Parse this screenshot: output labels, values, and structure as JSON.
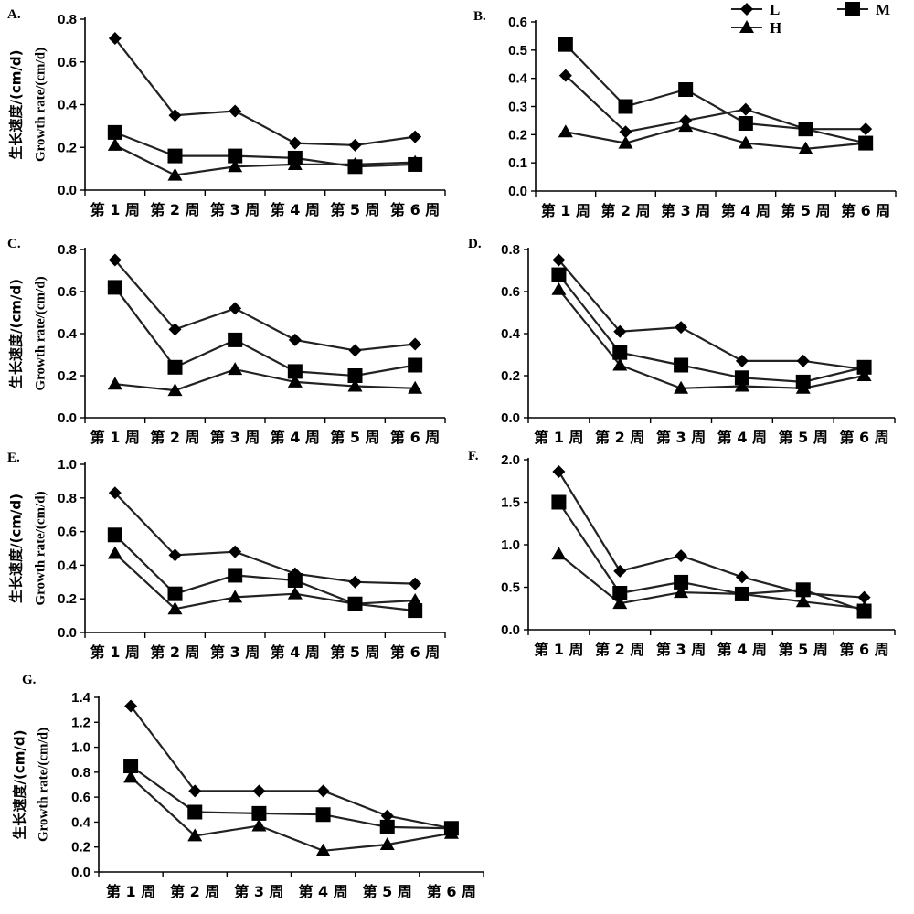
{
  "legend": [
    {
      "name": "L",
      "marker": "diamond"
    },
    {
      "name": "M",
      "marker": "square"
    },
    {
      "name": "H",
      "marker": "triangle"
    }
  ],
  "colors": {
    "line": "#222222",
    "marker": "#000000",
    "axis": "#000000"
  },
  "chart_data": [
    {
      "type": "line",
      "panel": "A.",
      "categories": [
        "第 1 周",
        "第 2 周",
        "第 3 周",
        "第 4 周",
        "第 5 周",
        "第 6 周"
      ],
      "ylabel_zh": "生长速度/(cm/d)",
      "ylabel_en": "Growth rate/(cm/d)",
      "ylim": [
        0,
        0.8
      ],
      "yticks": [
        0.0,
        0.2,
        0.4,
        0.6,
        0.8
      ],
      "ytick_labels": [
        "0.0",
        "0.2",
        "0.4",
        "0.6",
        "0.8"
      ],
      "grid": false,
      "legend": false,
      "series": [
        {
          "name": "L",
          "marker": "diamond",
          "values": [
            0.71,
            0.35,
            0.37,
            0.22,
            0.21,
            0.25
          ]
        },
        {
          "name": "M",
          "marker": "square",
          "values": [
            0.27,
            0.16,
            0.16,
            0.15,
            0.11,
            0.12
          ]
        },
        {
          "name": "H",
          "marker": "triangle",
          "values": [
            0.21,
            0.07,
            0.11,
            0.12,
            0.12,
            0.13
          ]
        }
      ]
    },
    {
      "type": "line",
      "panel": "B.",
      "categories": [
        "第 1 周",
        "第 2 周",
        "第 3 周",
        "第 4 周",
        "第 5 周",
        "第 6 周"
      ],
      "ylabel_zh": "",
      "ylabel_en": "",
      "ylim": [
        0,
        0.6
      ],
      "yticks": [
        0.0,
        0.1,
        0.2,
        0.3,
        0.4,
        0.5,
        0.6
      ],
      "ytick_labels": [
        "0.0",
        "0.1",
        "0.2",
        "0.3",
        "0.4",
        "0.5",
        "0.6"
      ],
      "grid": false,
      "legend": true,
      "legend_position": "top-right",
      "series": [
        {
          "name": "L",
          "marker": "diamond",
          "values": [
            0.41,
            0.21,
            0.25,
            0.29,
            0.22,
            0.22
          ]
        },
        {
          "name": "M",
          "marker": "square",
          "values": [
            0.52,
            0.3,
            0.36,
            0.24,
            0.22,
            0.17
          ]
        },
        {
          "name": "H",
          "marker": "triangle",
          "values": [
            0.21,
            0.17,
            0.23,
            0.17,
            0.15,
            0.17
          ]
        }
      ]
    },
    {
      "type": "line",
      "panel": "C.",
      "categories": [
        "第 1 周",
        "第 2 周",
        "第 3 周",
        "第 4 周",
        "第 5 周",
        "第 6 周"
      ],
      "ylabel_zh": "生长速度/(cm/d)",
      "ylabel_en": "Growth rate/(cm/d)",
      "ylim": [
        0,
        0.8
      ],
      "yticks": [
        0.0,
        0.2,
        0.4,
        0.6,
        0.8
      ],
      "ytick_labels": [
        "0.0",
        "0.2",
        "0.4",
        "0.6",
        "0.8"
      ],
      "grid": false,
      "legend": false,
      "series": [
        {
          "name": "L",
          "marker": "diamond",
          "values": [
            0.75,
            0.42,
            0.52,
            0.37,
            0.32,
            0.35
          ]
        },
        {
          "name": "M",
          "marker": "square",
          "values": [
            0.62,
            0.24,
            0.37,
            0.22,
            0.2,
            0.25
          ]
        },
        {
          "name": "H",
          "marker": "triangle",
          "values": [
            0.16,
            0.13,
            0.23,
            0.17,
            0.15,
            0.14
          ]
        }
      ]
    },
    {
      "type": "line",
      "panel": "D.",
      "categories": [
        "第 1 周",
        "第 2 周",
        "第 3 周",
        "第 4 周",
        "第 5 周",
        "第 6 周"
      ],
      "ylabel_zh": "",
      "ylabel_en": "",
      "ylim": [
        0,
        0.8
      ],
      "yticks": [
        0.0,
        0.2,
        0.4,
        0.6,
        0.8
      ],
      "ytick_labels": [
        "0.0",
        "0.2",
        "0.4",
        "0.6",
        "0.8"
      ],
      "grid": false,
      "legend": false,
      "series": [
        {
          "name": "L",
          "marker": "diamond",
          "values": [
            0.75,
            0.41,
            0.43,
            0.27,
            0.27,
            0.23
          ]
        },
        {
          "name": "M",
          "marker": "square",
          "values": [
            0.68,
            0.31,
            0.25,
            0.19,
            0.17,
            0.24
          ]
        },
        {
          "name": "H",
          "marker": "triangle",
          "values": [
            0.61,
            0.25,
            0.14,
            0.15,
            0.14,
            0.2
          ]
        }
      ]
    },
    {
      "type": "line",
      "panel": "E.",
      "categories": [
        "第 1 周",
        "第 2 周",
        "第 3 周",
        "第 4 周",
        "第 5 周",
        "第 6 周"
      ],
      "ylabel_zh": "生长速度/(cm/d)",
      "ylabel_en": "Growth rate/(cm/d)",
      "ylim": [
        0,
        1.0
      ],
      "yticks": [
        0.0,
        0.2,
        0.4,
        0.6,
        0.8,
        1.0
      ],
      "ytick_labels": [
        "0.0",
        "0.2",
        "0.4",
        "0.6",
        "0.8",
        "1.0"
      ],
      "grid": false,
      "legend": false,
      "series": [
        {
          "name": "L",
          "marker": "diamond",
          "values": [
            0.83,
            0.46,
            0.48,
            0.35,
            0.3,
            0.29
          ]
        },
        {
          "name": "M",
          "marker": "square",
          "values": [
            0.58,
            0.23,
            0.34,
            0.31,
            0.17,
            0.13
          ]
        },
        {
          "name": "H",
          "marker": "triangle",
          "values": [
            0.47,
            0.14,
            0.21,
            0.23,
            0.17,
            0.19
          ]
        }
      ]
    },
    {
      "type": "line",
      "panel": "F.",
      "categories": [
        "第 1 周",
        "第 2 周",
        "第 3 周",
        "第 4 周",
        "第 5 周",
        "第 6 周"
      ],
      "ylabel_zh": "",
      "ylabel_en": "",
      "ylim": [
        0,
        2.0
      ],
      "yticks": [
        0.0,
        0.5,
        1.0,
        1.5,
        2.0
      ],
      "ytick_labels": [
        "0.0",
        "0.5",
        "1.0",
        "1.5",
        "2.0"
      ],
      "grid": false,
      "legend": false,
      "series": [
        {
          "name": "L",
          "marker": "diamond",
          "values": [
            1.86,
            0.69,
            0.87,
            0.62,
            0.43,
            0.38
          ]
        },
        {
          "name": "M",
          "marker": "square",
          "values": [
            1.5,
            0.43,
            0.56,
            0.42,
            0.47,
            0.22
          ]
        },
        {
          "name": "H",
          "marker": "triangle",
          "values": [
            0.89,
            0.31,
            0.44,
            0.42,
            0.33,
            0.25
          ]
        }
      ]
    },
    {
      "type": "line",
      "panel": "G.",
      "categories": [
        "第 1 周",
        "第 2 周",
        "第 3 周",
        "第 4 周",
        "第 5 周",
        "第 6 周"
      ],
      "ylabel_zh": "生长速度/(cm/d)",
      "ylabel_en": "Growth rate/(cm/d)",
      "ylim": [
        0,
        1.4
      ],
      "yticks": [
        0.0,
        0.2,
        0.4,
        0.6,
        0.8,
        1.0,
        1.2,
        1.4
      ],
      "ytick_labels": [
        "0.0",
        "0.2",
        "0.4",
        "0.6",
        "0.8",
        "1.0",
        "1.2",
        "1.4"
      ],
      "grid": false,
      "legend": false,
      "series": [
        {
          "name": "L",
          "marker": "diamond",
          "values": [
            1.33,
            0.65,
            0.65,
            0.65,
            0.45,
            0.35
          ]
        },
        {
          "name": "M",
          "marker": "square",
          "values": [
            0.85,
            0.48,
            0.47,
            0.46,
            0.36,
            0.35
          ]
        },
        {
          "name": "H",
          "marker": "triangle",
          "values": [
            0.76,
            0.29,
            0.37,
            0.17,
            0.22,
            0.31
          ]
        }
      ]
    }
  ]
}
